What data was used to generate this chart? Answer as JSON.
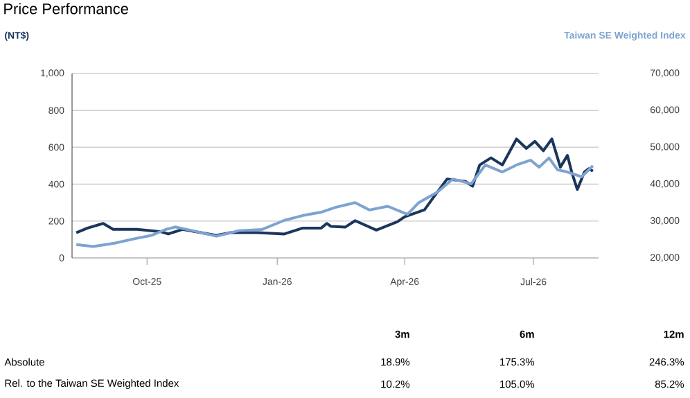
{
  "chart_data": {
    "type": "line",
    "title": "Price Performance",
    "ylabel": "(NT$)",
    "y2label": "Taiwan SE Weighted Index",
    "xlim": [
      "2025-08-09",
      "2026-08-16"
    ],
    "xticks": [
      {
        "value": "2025-10-01",
        "label": "Oct-25"
      },
      {
        "value": "2026-01-01",
        "label": "Jan-26"
      },
      {
        "value": "2026-04-01",
        "label": "Apr-26"
      },
      {
        "value": "2026-07-01",
        "label": "Jul-26"
      }
    ],
    "ylim": [
      0,
      1000
    ],
    "yticks": [
      0,
      200,
      400,
      600,
      800,
      {
        "value": 1000,
        "label": "1,000"
      }
    ],
    "y2lim": [
      20000,
      70000
    ],
    "y2ticks": [
      {
        "value": 20000,
        "label": "20,000"
      },
      {
        "value": 30000,
        "label": "30,000"
      },
      {
        "value": 40000,
        "label": "40,000"
      },
      {
        "value": 50000,
        "label": "50,000"
      },
      {
        "value": 60000,
        "label": "60,000"
      },
      {
        "value": 70000,
        "label": "70,000"
      }
    ],
    "grid": "y",
    "marker": "none",
    "line_style": "solid",
    "series": [
      {
        "color": "#7da3d0",
        "axis": "y2",
        "x": [
          "2025-08-12",
          "2025-08-24",
          "2025-09-08",
          "2025-09-22",
          "2025-10-04",
          "2025-10-14",
          "2025-10-21",
          "2025-11-02",
          "2025-11-19",
          "2025-12-05",
          "2025-12-21",
          "2026-01-06",
          "2026-01-19",
          "2026-02-01",
          "2026-02-11",
          "2026-02-25",
          "2026-03-07",
          "2026-03-20",
          "2026-04-03",
          "2026-04-11",
          "2026-04-24",
          "2026-05-05",
          "2026-05-18",
          "2026-05-28",
          "2026-06-09",
          "2026-06-19",
          "2026-06-29",
          "2026-07-05",
          "2026-07-12",
          "2026-07-18",
          "2026-07-25",
          "2026-08-04",
          "2026-08-12"
        ],
        "values": [
          23600,
          23100,
          24000,
          25200,
          26100,
          27700,
          28400,
          27400,
          25900,
          27400,
          27700,
          30200,
          31500,
          32400,
          33700,
          35000,
          33000,
          34000,
          31800,
          35000,
          37800,
          41400,
          40100,
          45200,
          43300,
          45200,
          46500,
          44600,
          47100,
          43900,
          43300,
          42000,
          45000
        ]
      },
      {
        "color": "#1b365d",
        "axis": "y",
        "x": [
          "2025-08-12",
          "2025-08-20",
          "2025-08-31",
          "2025-09-07",
          "2025-09-24",
          "2025-10-11",
          "2025-10-16",
          "2025-10-26",
          "2025-11-19",
          "2025-11-29",
          "2025-12-18",
          "2026-01-06",
          "2026-01-19",
          "2026-02-01",
          "2026-02-05",
          "2026-02-08",
          "2026-02-18",
          "2026-02-25",
          "2026-03-12",
          "2026-03-27",
          "2026-04-01",
          "2026-04-15",
          "2026-04-21",
          "2026-05-01",
          "2026-05-14",
          "2026-05-19",
          "2026-05-24",
          "2026-06-01",
          "2026-06-09",
          "2026-06-19",
          "2026-06-26",
          "2026-07-02",
          "2026-07-08",
          "2026-07-14",
          "2026-07-20",
          "2026-07-25",
          "2026-07-28",
          "2026-08-01",
          "2026-08-06",
          "2026-08-09",
          "2026-08-12"
        ],
        "values": [
          137,
          162,
          187,
          155,
          155,
          142,
          130,
          155,
          122,
          137,
          137,
          130,
          162,
          162,
          187,
          171,
          167,
          202,
          151,
          197,
          223,
          261,
          325,
          428,
          415,
          389,
          504,
          543,
          504,
          645,
          594,
          632,
          581,
          645,
          492,
          556,
          466,
          371,
          466,
          484,
          471
        ]
      }
    ],
    "annotations": [
      "3m",
      "6m",
      "12m",
      "Absolute",
      "18.9%",
      "175.3%",
      "246.3%",
      "Rel. to the Taiwan SE Weighted Index",
      "10.2%",
      "105.0%",
      "85.2%"
    ]
  }
}
